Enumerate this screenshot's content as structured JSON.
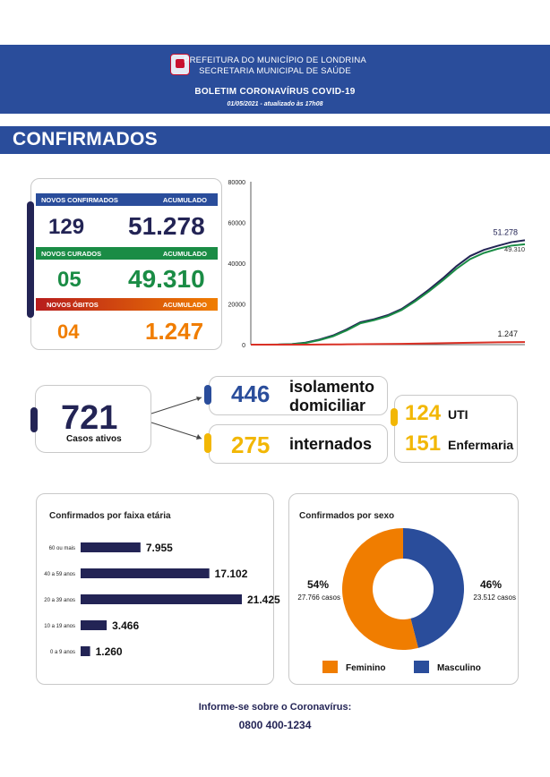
{
  "header": {
    "line1": "PREFEITURA DO MUNICÍPIO DE LONDRINA",
    "line2": "SECRETARIA MUNICIPAL DE SAÚDE",
    "bulletin": "BOLETIM CORONAVÍRUS COVID-19",
    "date": "01/05/2021 - atualizado às 17h08"
  },
  "section_title": "CONFIRMADOS",
  "summary": {
    "novos_confirmados_label": "NOVOS CONFIRMADOS",
    "acumulado1_label": "ACUMULADO",
    "novos_confirmados": "129",
    "acumulado_confirmados": "51.278",
    "novos_curados_label": "NOVOS CURADOS",
    "acumulado2_label": "ACUMULADO",
    "novos_curados": "05",
    "acumulado_curados": "49.310",
    "novos_obitos_label": "NOVOS ÓBITOS",
    "acumulado3_label": "ACUMULADO",
    "novos_obitos": "04",
    "acumulado_obitos": "1.247"
  },
  "active": {
    "total": "721",
    "total_label": "Casos ativos",
    "isolamento": "446",
    "isolamento_label1": "isolamento",
    "isolamento_label2": "domiciliar",
    "internados": "275",
    "internados_label": "internados",
    "uti": "124",
    "uti_label": "UTI",
    "enfermaria": "151",
    "enfermaria_label": "Enfermaria"
  },
  "colors": {
    "navy": "#232455",
    "blue": "#2a4d9b",
    "green": "#1a8c45",
    "red": "#d93025",
    "orange": "#f07d00",
    "yellow": "#f2b705",
    "darkred": "#b71c1c"
  },
  "footer": {
    "line1": "Informe-se sobre o Coronavírus:",
    "line2": "0800 400-1234"
  },
  "chart_data": [
    {
      "type": "line",
      "ylim": [
        0,
        80000
      ],
      "yticks": [
        "0",
        "20000",
        "40000",
        "60000",
        "80000"
      ],
      "x": [
        0,
        5,
        10,
        15,
        20,
        25,
        30,
        35,
        40,
        45,
        50,
        55,
        60,
        65,
        70,
        75,
        80,
        85,
        90,
        95,
        100
      ],
      "series": [
        {
          "values": [
            0,
            0,
            50,
            300,
            1000,
            2500,
            4500,
            7500,
            11000,
            12500,
            14500,
            17500,
            22000,
            27000,
            32500,
            38500,
            43500,
            46500,
            48500,
            50300,
            51278
          ],
          "color": "#232455",
          "end_label": "51.278"
        },
        {
          "values": [
            0,
            0,
            30,
            200,
            800,
            2200,
            4100,
            7000,
            10500,
            12000,
            14000,
            17000,
            21300,
            26200,
            31500,
            37200,
            42000,
            45000,
            47000,
            48600,
            49310
          ],
          "color": "#1a8c45",
          "end_label": "49.310"
        },
        {
          "values": [
            0,
            0,
            0,
            5,
            20,
            60,
            100,
            150,
            220,
            280,
            340,
            400,
            480,
            580,
            700,
            830,
            960,
            1060,
            1140,
            1200,
            1247
          ],
          "color": "#d93025",
          "end_label": "1.247"
        }
      ]
    },
    {
      "type": "bar",
      "title": "Confirmados por faixa etária",
      "categories": [
        "60 ou mais",
        "40 a 59 anos",
        "20 a 39 anos",
        "10 a 19 anos",
        "0 a 9 anos"
      ],
      "values": [
        7955,
        17102,
        21425,
        3466,
        1260
      ],
      "value_labels": [
        "7.955",
        "17.102",
        "21.425",
        "3.466",
        "1.260"
      ],
      "xlim": [
        0,
        21425
      ]
    },
    {
      "type": "pie",
      "title": "Confirmados por sexo",
      "categories": [
        "Feminino",
        "Masculino"
      ],
      "values": [
        54,
        46
      ],
      "percent_labels": [
        "54%",
        "46%"
      ],
      "case_labels": [
        "27.766 casos",
        "23.512 casos"
      ],
      "colors": [
        "#f07d00",
        "#2a4d9b"
      ]
    }
  ]
}
